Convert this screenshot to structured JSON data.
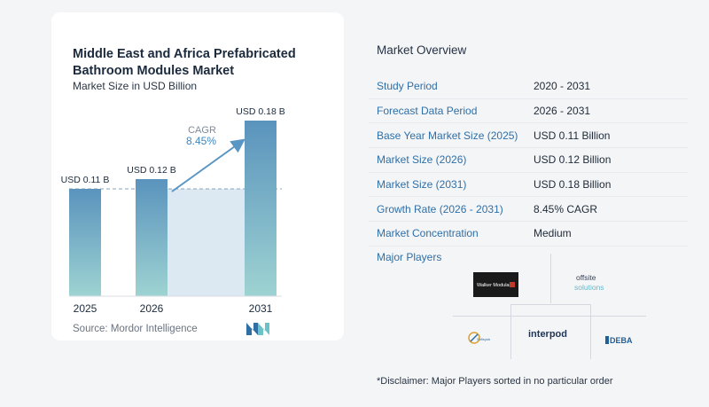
{
  "chart": {
    "title": "Middle East and Africa Prefabricated Bathroom Modules Market",
    "subtitle": "Market Size in USD Billion",
    "cagr_label": "CAGR",
    "cagr_value": "8.45%",
    "source": "Source:  Mordor Intelligence"
  },
  "chart_data": {
    "type": "bar",
    "title": "Middle East and Africa Prefabricated Bathroom Modules Market",
    "subtitle": "Market Size in USD Billion",
    "categories": [
      "2025",
      "2026",
      "2031"
    ],
    "values": [
      0.11,
      0.12,
      0.18
    ],
    "data_labels": [
      "USD 0.11 B",
      "USD 0.12 B",
      "USD 0.18 B"
    ],
    "ylim": [
      0,
      0.2
    ],
    "grid": false,
    "colors": {
      "bar_top": "#5a93bd",
      "bar_bottom": "#9ed3d2",
      "band": "#dce8f2",
      "arrow": "#5a96c4"
    }
  },
  "overview": {
    "title": "Market Overview",
    "rows": [
      {
        "key": "Study Period",
        "value": "2020 - 2031"
      },
      {
        "key": "Forecast Data Period",
        "value": "2026 - 2031"
      },
      {
        "key": "Base Year Market Size (2025)",
        "value": "USD 0.11 Billion"
      },
      {
        "key": "Market Size (2026)",
        "value": "USD 0.12 Billion"
      },
      {
        "key": "Market Size (2031)",
        "value": "USD 0.18 Billion"
      },
      {
        "key": "Growth Rate (2026 - 2031)",
        "value": "8.45% CAGR"
      },
      {
        "key": "Market Concentration",
        "value": "Medium"
      }
    ]
  },
  "players": {
    "title": "Major Players",
    "logos": [
      "Walker Modular",
      "offsite solutions",
      "interpod",
      "DEBA",
      "Sofisystem"
    ]
  },
  "disclaimer": "*Disclaimer: Major Players sorted in no particular order"
}
